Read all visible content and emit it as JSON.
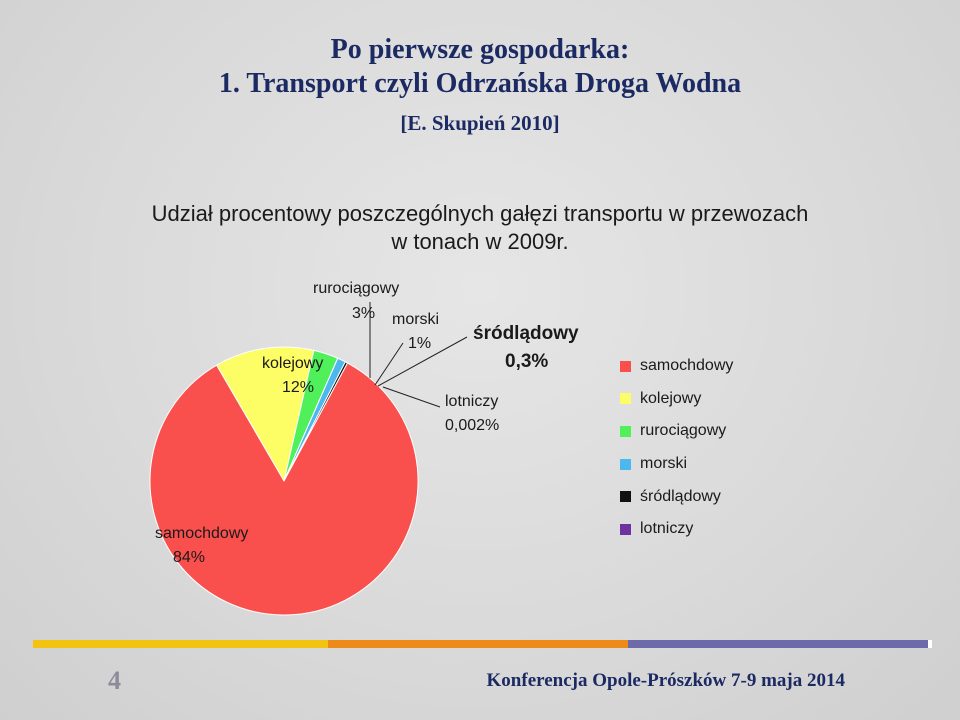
{
  "slide": {
    "title_line1": "Po pierwsze gospodarka:",
    "title_line2": "1. Transport czyli Odrzańska Droga Wodna",
    "source": "[E. Skupień 2010]",
    "page_number": "4",
    "footer": "Konferencja Opole-Prószków 7-9 maja 2014"
  },
  "colors": {
    "title": "#1c2a63",
    "footer_yellow": "#f2c311",
    "footer_orange": "#ee8a1a",
    "footer_purple": "#6c6aa8"
  },
  "chart_data": {
    "type": "pie",
    "title_line1": "Udział procentowy poszczególnych gałęzi transportu w przewozach",
    "title_line2": "w tonach w 2009r.",
    "legend_position": "right",
    "slices": [
      {
        "name": "samochdowy",
        "value": 84,
        "label": "84%",
        "color": "#f9504e"
      },
      {
        "name": "kolejowy",
        "value": 12,
        "label": "12%",
        "color": "#fdfd66"
      },
      {
        "name": "rurociągowy",
        "value": 3,
        "label": "3%",
        "color": "#4ff05a"
      },
      {
        "name": "morski",
        "value": 1,
        "label": "1%",
        "color": "#4db8f0"
      },
      {
        "name": "śródlądowy",
        "value": 0.3,
        "label": "0,3%",
        "color": "#111111"
      },
      {
        "name": "lotniczy",
        "value": 0.002,
        "label": "0,002%",
        "color": "#7030a0"
      }
    ]
  }
}
